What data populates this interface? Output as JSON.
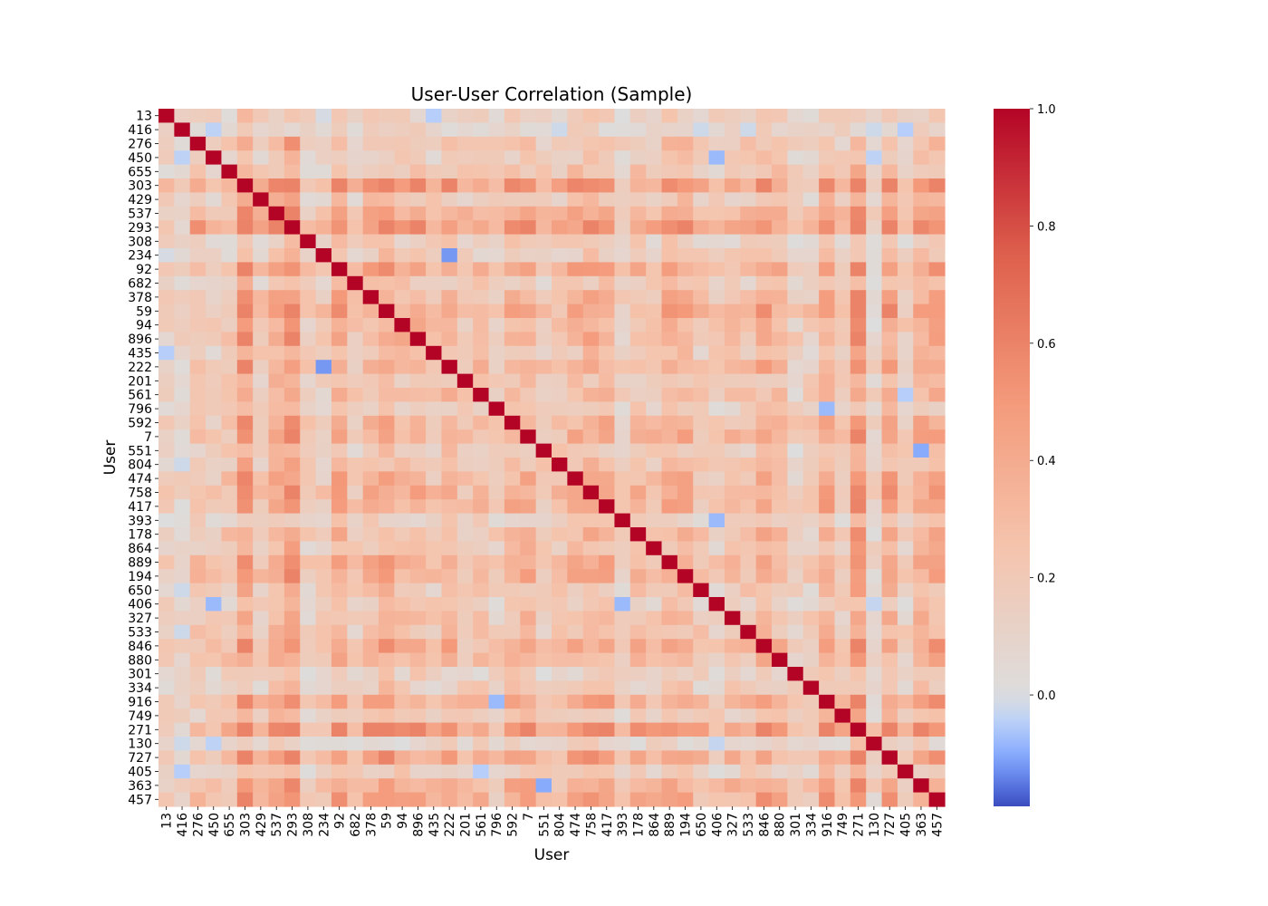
{
  "chart_data": {
    "type": "heatmap",
    "title": "User-User Correlation (Sample)",
    "xlabel": "User",
    "ylabel": "User",
    "labels": [
      "13",
      "416",
      "276",
      "450",
      "655",
      "303",
      "429",
      "537",
      "293",
      "308",
      "234",
      "92",
      "682",
      "378",
      "59",
      "94",
      "896",
      "435",
      "222",
      "201",
      "561",
      "796",
      "592",
      "7",
      "551",
      "804",
      "474",
      "758",
      "417",
      "393",
      "178",
      "864",
      "889",
      "194",
      "650",
      "406",
      "327",
      "533",
      "846",
      "880",
      "301",
      "334",
      "916",
      "749",
      "271",
      "130",
      "727",
      "405",
      "363",
      "457"
    ],
    "colorbar": {
      "min": -0.19,
      "max": 1.0,
      "ticks": [
        1.0,
        0.8,
        0.6,
        0.4,
        0.2,
        0.0
      ],
      "tick_labels": [
        "1.0",
        "0.8",
        "0.6",
        "0.4",
        "0.2",
        "0.0"
      ],
      "colormap": "coolwarm",
      "center": 0.0
    },
    "diagonal": 1.0,
    "typical_range": [
      -0.15,
      0.6
    ],
    "notable_values": [
      {
        "row": "276",
        "col": "293",
        "value": 0.55
      },
      {
        "row": "303",
        "col": "592",
        "value": 0.58
      },
      {
        "row": "303",
        "col": "758",
        "value": 0.56
      },
      {
        "row": "293",
        "col": "916",
        "value": 0.55
      },
      {
        "row": "293",
        "col": "457",
        "value": 0.52
      },
      {
        "row": "222",
        "col": "234",
        "value": -0.12
      },
      {
        "row": "393",
        "col": "406",
        "value": -0.08
      },
      {
        "row": "796",
        "col": "916",
        "value": -0.08
      },
      {
        "row": "551",
        "col": "363",
        "value": -0.1
      },
      {
        "row": "13",
        "col": "435",
        "value": -0.05
      },
      {
        "row": "450",
        "col": "406",
        "value": -0.08
      },
      {
        "row": "561",
        "col": "405",
        "value": -0.05
      }
    ]
  }
}
